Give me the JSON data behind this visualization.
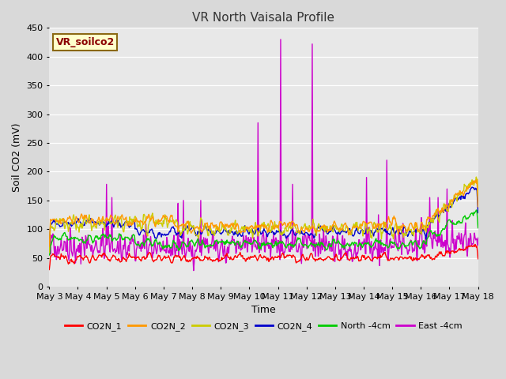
{
  "title": "VR North Vaisala Profile",
  "xlabel": "Time",
  "ylabel": "Soil CO2 (mV)",
  "ylim": [
    0,
    450
  ],
  "xlim": [
    0,
    15
  ],
  "x_tick_labels": [
    "May 3",
    "May 4",
    "May 5",
    "May 6",
    "May 7",
    "May 8",
    "May 9",
    "May 10",
    "May 11",
    "May 12",
    "May 13",
    "May 14",
    "May 15",
    "May 16",
    "May 17",
    "May 18"
  ],
  "background_color": "#d9d9d9",
  "plot_bg_color": "#e8e8e8",
  "grid_color": "#ffffff",
  "label_box_text": "VR_soilco2",
  "label_box_facecolor": "#ffffcc",
  "label_box_edgecolor": "#8b6914",
  "series_colors": {
    "CO2N_1": "#ff0000",
    "CO2N_2": "#ff9900",
    "CO2N_3": "#cccc00",
    "CO2N_4": "#0000cc",
    "North_4cm": "#00cc00",
    "East_4cm": "#cc00cc"
  },
  "lw": 1.0,
  "legend_labels": [
    "CO2N_1",
    "CO2N_2",
    "CO2N_3",
    "CO2N_4",
    "North -4cm",
    "East -4cm"
  ],
  "legend_colors": [
    "#ff0000",
    "#ff9900",
    "#cccc00",
    "#0000cc",
    "#00cc00",
    "#cc00cc"
  ]
}
